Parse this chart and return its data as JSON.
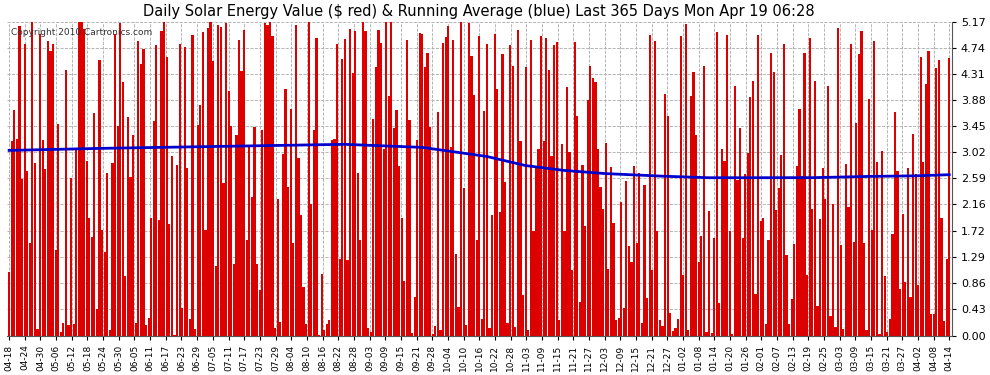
{
  "title": "Daily Solar Energy Value ($ red) & Running Average (blue) Last 365 Days Mon Apr 19 06:28",
  "copyright": "Copyright 2010 Cartronics.com",
  "yticks": [
    0.0,
    0.43,
    0.86,
    1.29,
    1.72,
    2.16,
    2.59,
    3.02,
    3.45,
    3.88,
    4.31,
    4.74,
    5.17
  ],
  "ymax": 5.17,
  "bar_color": "#dd0000",
  "avg_color": "#0000cc",
  "background_color": "#ffffff",
  "grid_color": "#aaaaaa",
  "n_bars": 365,
  "xtick_labels": [
    "04-18",
    "04-24",
    "04-30",
    "05-06",
    "05-12",
    "05-18",
    "05-24",
    "05-30",
    "06-05",
    "06-11",
    "06-17",
    "06-23",
    "06-29",
    "07-05",
    "07-11",
    "07-17",
    "07-23",
    "07-29",
    "08-04",
    "08-10",
    "08-16",
    "08-22",
    "08-28",
    "09-03",
    "09-09",
    "09-15",
    "09-21",
    "09-28",
    "10-04",
    "10-10",
    "10-16",
    "10-22",
    "10-28",
    "11-03",
    "11-09",
    "11-15",
    "11-21",
    "11-27",
    "12-03",
    "12-09",
    "12-15",
    "12-21",
    "12-27",
    "01-02",
    "01-08",
    "01-14",
    "01-20",
    "01-26",
    "02-01",
    "02-07",
    "02-13",
    "02-19",
    "02-25",
    "03-03",
    "03-09",
    "03-15",
    "03-21",
    "03-27",
    "04-02",
    "04-08",
    "04-14"
  ],
  "running_avg_keypoints": [
    [
      0,
      3.05
    ],
    [
      30,
      3.08
    ],
    [
      60,
      3.1
    ],
    [
      100,
      3.13
    ],
    [
      130,
      3.15
    ],
    [
      160,
      3.1
    ],
    [
      185,
      2.95
    ],
    [
      200,
      2.8
    ],
    [
      215,
      2.72
    ],
    [
      230,
      2.67
    ],
    [
      250,
      2.63
    ],
    [
      270,
      2.6
    ],
    [
      290,
      2.6
    ],
    [
      310,
      2.6
    ],
    [
      330,
      2.62
    ],
    [
      350,
      2.63
    ],
    [
      364,
      2.65
    ]
  ]
}
